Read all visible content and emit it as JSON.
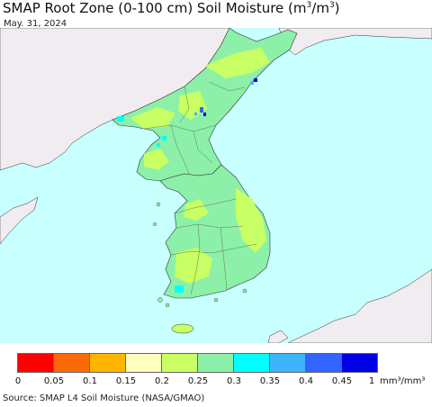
{
  "title": {
    "main": "SMAP Root Zone (0-100 cm) Soil Moisture (m",
    "sup1": "3",
    "mid": "/m",
    "sup2": "3",
    "end": ")"
  },
  "date": "May. 31, 2024",
  "legend": {
    "colors": [
      "#ff0000",
      "#fa6a0a",
      "#ffb400",
      "#ffffc0",
      "#c8ff64",
      "#8cf0a8",
      "#00ffff",
      "#3cb4ff",
      "#3264ff",
      "#0000e6"
    ],
    "ticks": [
      "0",
      "0.05",
      "0.1",
      "0.15",
      "0.2",
      "0.25",
      "0.3",
      "0.35",
      "0.4",
      "0.45",
      "1"
    ],
    "unit": "mm³/mm³"
  },
  "colors": {
    "ocean": "#c8ffff",
    "outside_land": "#f0ecf0",
    "land_base": "#8cf0a8",
    "dry": "#c8ff64",
    "wet": "#00ffff"
  },
  "source": "Source: SMAP L4 Soil Moisture (NASA/GMAO)"
}
